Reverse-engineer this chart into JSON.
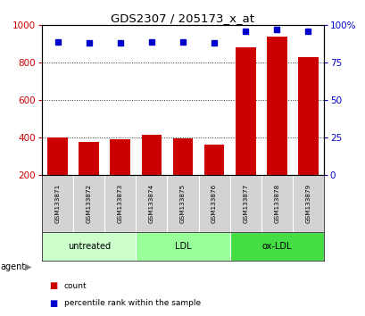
{
  "title": "GDS2307 / 205173_x_at",
  "categories": [
    "GSM133871",
    "GSM133872",
    "GSM133873",
    "GSM133874",
    "GSM133875",
    "GSM133876",
    "GSM133877",
    "GSM133878",
    "GSM133879"
  ],
  "bar_values": [
    400,
    375,
    390,
    415,
    395,
    360,
    880,
    940,
    830
  ],
  "percentile_values": [
    89,
    88,
    88,
    89,
    89,
    88,
    96,
    97,
    96
  ],
  "bar_color": "#cc0000",
  "dot_color": "#0000cc",
  "ylim_left": [
    200,
    1000
  ],
  "ylim_right": [
    0,
    100
  ],
  "yticks_left": [
    200,
    400,
    600,
    800,
    1000
  ],
  "yticks_right": [
    0,
    25,
    50,
    75,
    100
  ],
  "ytick_labels_right": [
    "0",
    "25",
    "50",
    "75",
    "100%"
  ],
  "grid_values": [
    400,
    600,
    800
  ],
  "groups": [
    {
      "label": "untreated",
      "start": 0,
      "end": 3,
      "color": "#ccffcc"
    },
    {
      "label": "LDL",
      "start": 3,
      "end": 6,
      "color": "#99ff99"
    },
    {
      "label": "ox-LDL",
      "start": 6,
      "end": 9,
      "color": "#44dd44"
    }
  ],
  "group_row_label": "agent",
  "legend_items": [
    {
      "label": "count",
      "color": "#cc0000"
    },
    {
      "label": "percentile rank within the sample",
      "color": "#0000cc"
    }
  ],
  "bar_bottom": 200,
  "tick_color_left": "#cc0000",
  "tick_color_right": "#0000cc",
  "label_bg": "#d3d3d3",
  "bar_width": 0.65
}
